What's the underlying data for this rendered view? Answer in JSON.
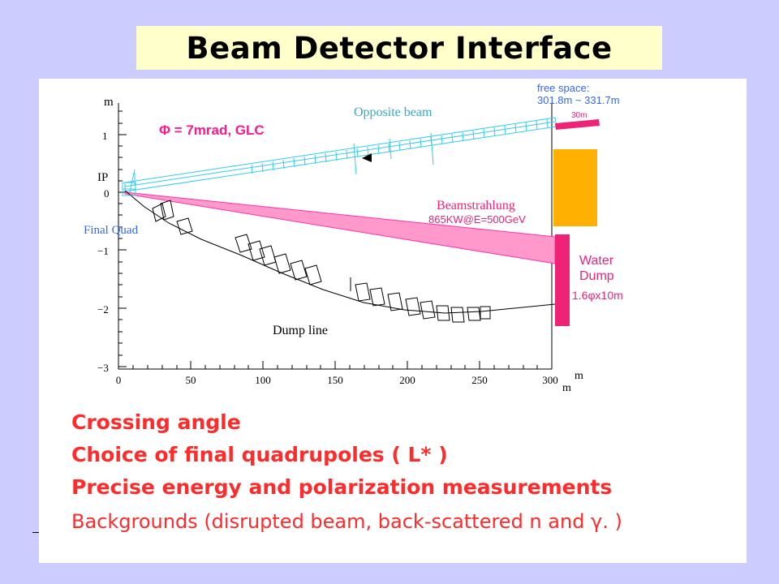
{
  "title": "Beam Detector Interface",
  "diagram": {
    "y_axis": {
      "unit_label": "m",
      "tick_labels": [
        "1",
        "0",
        "−1",
        "−2",
        "−3"
      ],
      "ip_label": "IP"
    },
    "x_axis": {
      "tick_labels": [
        "0",
        "50",
        "100",
        "150",
        "200",
        "250",
        "300"
      ],
      "unit_label": "m"
    },
    "labels": {
      "crossing": "Φ = 7mrad, GLC",
      "opposite_beam": "Opposite beam",
      "free_space_line1": "free space:",
      "free_space_line2": "301.8m ~ 331.7m",
      "length_30m": "30m",
      "beamstrahlung": "Beamstrahlung",
      "beamstrahlung_power": "865KW@E=500GeV",
      "final_quad": "Final Quad",
      "water": "Water",
      "dump": "Dump",
      "dump_size": "1.6φx10m",
      "dump_line": "Dump line"
    },
    "colors": {
      "opposite_beam": "#33ccee",
      "crossing_label": "#ff1a8c",
      "beamstrahlung_fill": "#ff99cc",
      "beamstrahlung_edge": "#ff33aa",
      "water_dump": "#ee2277",
      "absorber": "#ffb000",
      "annotation_blue": "#3366ff",
      "bullet_text": "#ff2a2a"
    }
  },
  "bullets": [
    "Crossing angle",
    "Choice of final quadrupoles (  L* )",
    "Precise energy and polarization measurements",
    "Backgrounds (disrupted beam, back-scattered n and γ. )"
  ]
}
